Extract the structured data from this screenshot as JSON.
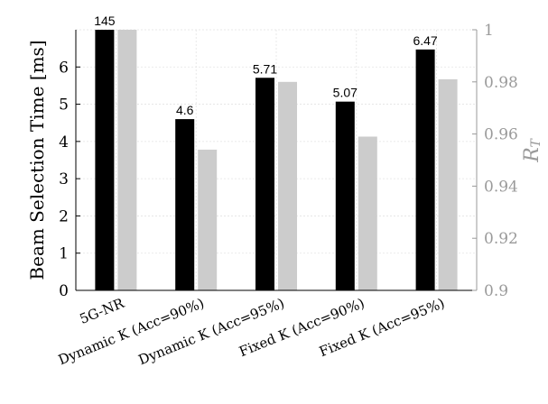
{
  "chart_data": {
    "type": "bar",
    "categories": [
      "5G-NR",
      "Dynamic K (Acc=90%)",
      "Dynamic K (Acc=95%)",
      "Fixed K (Acc=90%)",
      "Fixed K (Acc=95%)"
    ],
    "series": [
      {
        "axis": "left",
        "color": "#000000",
        "values": [
          145,
          4.6,
          5.71,
          5.07,
          6.47
        ],
        "data_labels": [
          "145",
          "4.6",
          "5.71",
          "5.07",
          "6.47"
        ]
      },
      {
        "axis": "right",
        "color": "#cccccc",
        "values": [
          1.0,
          0.954,
          0.98,
          0.959,
          0.981
        ]
      }
    ],
    "ylabel": "Beam Selection Time [ms]",
    "ylabel_right": "R",
    "ylabel_right_subscript": "T",
    "ylim": [
      0,
      7
    ],
    "ylim_right": [
      0.9,
      1.0
    ],
    "yticks": [
      "0",
      "1",
      "2",
      "3",
      "4",
      "5",
      "6"
    ],
    "yticks_right": [
      "0.9",
      "0.92",
      "0.94",
      "0.96",
      "0.98",
      "1"
    ],
    "grid": true,
    "colors": {
      "primary": "#000000",
      "secondary": "#cccccc",
      "right_axis": "#9a9a9a",
      "grid": "#e3e3e3"
    }
  }
}
